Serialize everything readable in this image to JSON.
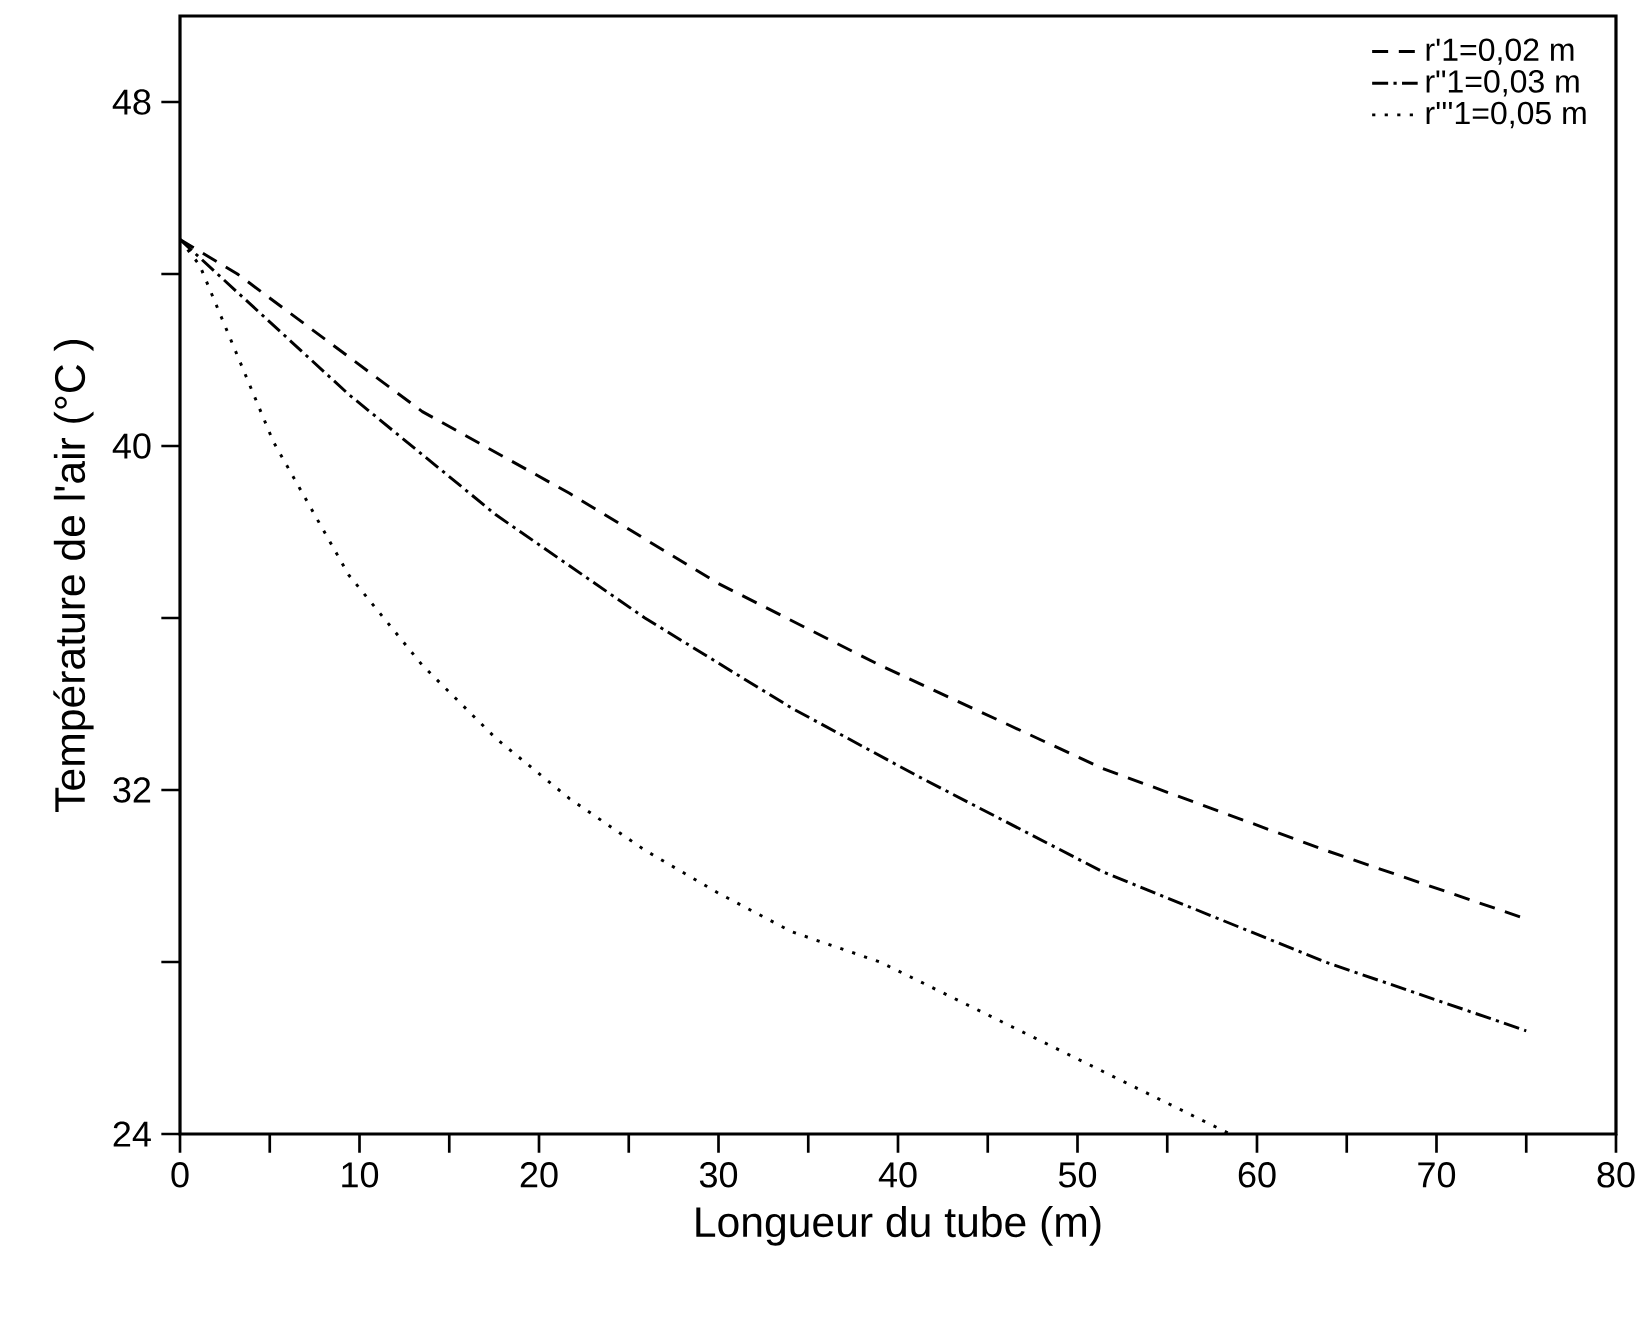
{
  "chart_data": {
    "type": "line",
    "xlabel": "Longueur du tube (m)",
    "ylabel": "Température de l'air (°C )",
    "xlim": [
      0,
      80
    ],
    "ylim": [
      24,
      50
    ],
    "xticks": [
      0,
      {
        "value": 5,
        "label": null
      },
      10,
      {
        "value": 15,
        "label": null
      },
      20,
      {
        "value": 25,
        "label": null
      },
      30,
      {
        "value": 35,
        "label": null
      },
      40,
      {
        "value": 45,
        "label": null
      },
      50,
      {
        "value": 55,
        "label": null
      },
      60,
      {
        "value": 65,
        "label": null
      },
      70,
      {
        "value": 75,
        "label": null
      },
      80
    ],
    "yticks": [
      24,
      {
        "value": 28,
        "label": null
      },
      32,
      {
        "value": 36,
        "label": null
      },
      40,
      {
        "value": 44,
        "label": null
      },
      48
    ],
    "grid": false,
    "legend": "top right",
    "marker": "none",
    "series": [
      {
        "name": "r'1=0,02 m",
        "color": "#000000",
        "line_style": "dashed",
        "x": [
          0,
          3.2,
          13.5,
          21.7,
          30,
          39,
          51.4,
          63.8,
          75
        ],
        "values": [
          44.8,
          44.0,
          40.8,
          38.9,
          36.8,
          34.9,
          32.5,
          30.6,
          29.0
        ]
      },
      {
        "name": "r\"1=0,03 m",
        "color": "#000000",
        "line_style": "dashdot",
        "x": [
          0,
          9.4,
          17.6,
          25.9,
          34.1,
          41.2,
          51.4,
          63.8,
          75
        ],
        "values": [
          44.8,
          41.2,
          38.4,
          36.0,
          33.9,
          32.3,
          30.1,
          28.0,
          26.4
        ]
      },
      {
        "name": "r'''1=0,05 m",
        "color": "#000000",
        "line_style": "dotted",
        "x": [
          0,
          1.1,
          5.2,
          9.4,
          13.5,
          17.6,
          21.7,
          25.9,
          30,
          34.1,
          39,
          47.3,
          58.5
        ],
        "values": [
          44.8,
          44.2,
          40.1,
          37.0,
          34.9,
          33.2,
          31.8,
          30.6,
          29.6,
          28.7,
          28.0,
          26.3,
          24.0
        ]
      }
    ]
  }
}
